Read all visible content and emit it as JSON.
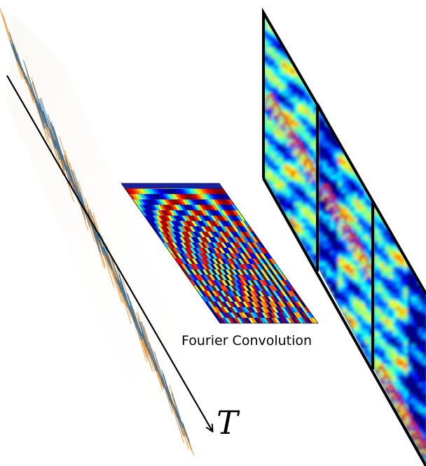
{
  "diagram": {
    "time_axis_symbol": "T",
    "convolution_label": "Fourier Convolution",
    "colors": {
      "signal_primary": "#2e6e9e",
      "signal_secondary": "#f28e2b",
      "axis": "#000000",
      "frame_border": "#000000",
      "kernel_top_bar": "#18229a"
    },
    "colormap": "jet",
    "spectrogram_frame_count": 3
  }
}
